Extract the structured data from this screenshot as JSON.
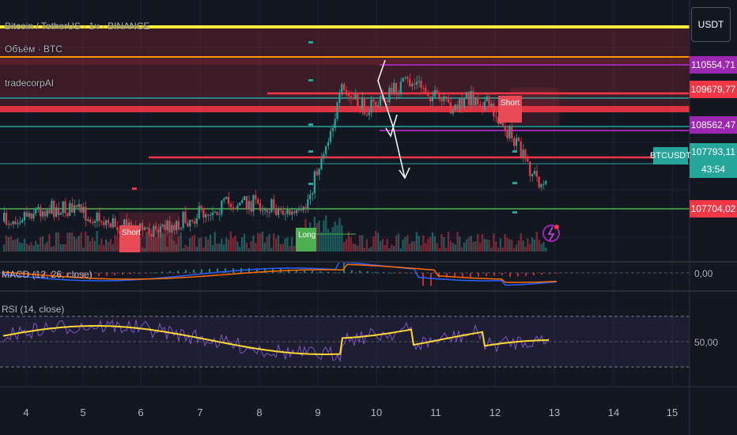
{
  "legend": {
    "symbol_line": "Bitcoin / TetherUS · 1ч · BINANCE",
    "volume": "Объём · BTC",
    "indicator": "tradecorpAI"
  },
  "currency_button": "USDT",
  "signals": {
    "short_1": "Short",
    "long_1": "Long",
    "short_2": "Short"
  },
  "price_scale": {
    "tags": [
      {
        "label": "110554,71",
        "color": "#9c27b0"
      },
      {
        "label": "109679,77",
        "color": "#f23645"
      },
      {
        "label": "108562,47",
        "color": "#9c27b0"
      },
      {
        "label": "107793,11",
        "color": "#26a69a"
      },
      {
        "label": "43:54",
        "color": "#26a69a"
      },
      {
        "label": "107704,02",
        "color": "#f23645"
      }
    ],
    "symbol_badge": "BTCUSDT"
  },
  "macd": {
    "label": "MACD (12, 26, close)",
    "scale_label": "0,00"
  },
  "rsi": {
    "label": "RSI (14, close)",
    "scale_label": "50,00"
  },
  "chart_data": {
    "type": "line",
    "x_ticks": [
      "4",
      "5",
      "6",
      "7",
      "8",
      "9",
      "10",
      "11",
      "12",
      "13",
      "14",
      "15"
    ],
    "last_price": 107793.11,
    "horizontal_levels": [
      110554.71,
      109679.77,
      108562.47,
      107704.02
    ],
    "colors": {
      "up": "#26a69a",
      "down": "#f23645",
      "level_yellow": "#ffeb3b",
      "level_orange": "#ff9800",
      "level_purple": "#9c27b0",
      "rsi_line": "#7e57c2",
      "rsi_ma": "#fdd835",
      "macd_line": "#2962ff",
      "signal_line": "#ff6d00"
    }
  }
}
